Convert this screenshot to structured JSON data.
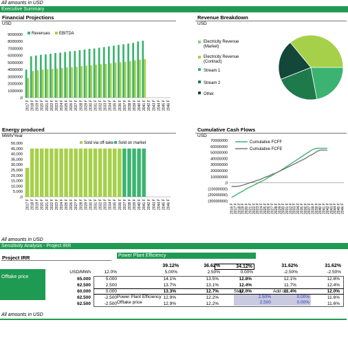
{
  "header": {
    "amounts_note": "All amounts in USD",
    "section": "Executive Summary"
  },
  "colors": {
    "green": "#1f9a52",
    "revenue": "#3cb371",
    "ebitda": "#a6d04a",
    "offtake": "#a6d04a",
    "market": "#3cb371"
  },
  "charts": {
    "projections": {
      "title": "Financial Projections",
      "unit": "USD"
    },
    "breakdown": {
      "title": "Revenue Breakdown",
      "unit": "USD"
    },
    "energy": {
      "title": "Energy produced",
      "unit": "MWh/Year"
    },
    "cashflow": {
      "title": "Cumulative Cash Flows",
      "unit": "USD"
    }
  },
  "chart_data": [
    {
      "type": "bar",
      "title": "Financial Projections",
      "ylabel": "USD",
      "categories": [
        "2017 F",
        "2018 F",
        "2019 F",
        "2020 F",
        "2021 F",
        "2022 F",
        "2023 F",
        "2024 F",
        "2025 F",
        "2026 F",
        "2027 F",
        "2028 F",
        "2029 F",
        "2030 F",
        "2031 F",
        "2032 F",
        "2033 F",
        "2034 F",
        "2035 F",
        "2036 F",
        "2037 F",
        "2038 F",
        "2039 F",
        "2040 F",
        "2041 F",
        "2042 F",
        "2043 F",
        "2044 F",
        "2045 F",
        "2046 F"
      ],
      "yticks": [
        "9000000",
        "8000000",
        "7000000",
        "6000000",
        "5000000",
        "4000000",
        "3000000",
        "2000000",
        "1000000",
        ",0"
      ],
      "ylim": [
        0,
        9000000
      ],
      "series": [
        {
          "name": "Revenues",
          "values": [
            4000000,
            5900000,
            6000000,
            6100000,
            6150000,
            6250000,
            6350000,
            6400000,
            6500000,
            6600000,
            6650000,
            6750000,
            6850000,
            6950000,
            7000000,
            7100000,
            7200000,
            7300000,
            7400000,
            7500000,
            7600000,
            7700000,
            7800000,
            8000000,
            8100000,
            0,
            0,
            0,
            0,
            0
          ]
        },
        {
          "name": "EBITDA",
          "values": [
            2800000,
            3800000,
            3900000,
            4000000,
            4050000,
            4100000,
            4150000,
            4200000,
            4300000,
            4350000,
            4400000,
            4500000,
            4550000,
            4600000,
            4700000,
            4750000,
            4800000,
            4900000,
            5000000,
            5050000,
            5100000,
            5200000,
            5300000,
            5400000,
            5500000,
            0,
            0,
            0,
            0,
            0
          ]
        }
      ],
      "legend": "top-left"
    },
    {
      "type": "pie",
      "title": "Revenue Breakdown",
      "labels": [
        "Electricity Revenue (Market)",
        "Electricity Revenue (Contract)",
        "Stream 1",
        "Stream 2",
        "Other"
      ],
      "values": [
        0,
        36,
        22,
        22,
        20
      ],
      "colors": [
        "#7fd37a",
        "#a6d04a",
        "#3cb371",
        "#1e7a4a",
        "#12473a"
      ],
      "legend": "left"
    },
    {
      "type": "bar",
      "title": "Energy produced",
      "ylabel": "MWh/Year",
      "categories": [
        "2017 F",
        "2018 F",
        "2019 F",
        "2020 F",
        "2021 F",
        "2022 F",
        "2023 F",
        "2024 F",
        "2025 F",
        "2026 F",
        "2027 F",
        "2028 F",
        "2029 F",
        "2030 F",
        "2031 F",
        "2032 F",
        "2033 F",
        "2034 F",
        "2035 F",
        "2036 F",
        "2037 F",
        "2038 F",
        "2039 F",
        "2040 F",
        "2041 F",
        "2042 F",
        "2043 F",
        "2044 F",
        "2045 F",
        "2046 F"
      ],
      "yticks": [
        "50,000",
        "45,000",
        "40,000",
        "35,000",
        "30,000",
        "25,000",
        "20,000",
        "15,000",
        "10,000",
        "5,000",
        ",0"
      ],
      "ylim": [
        0,
        50000
      ],
      "series": [
        {
          "name": "Sold via off-take",
          "values": [
            27000,
            45000,
            45000,
            45000,
            45000,
            45000,
            45000,
            45000,
            45000,
            45000,
            45000,
            45000,
            45000,
            45000,
            45000,
            45000,
            45000,
            45000,
            45000,
            45000,
            0,
            0,
            0,
            0,
            0,
            0,
            0,
            0,
            0,
            0
          ]
        },
        {
          "name": "Sold on market",
          "values": [
            0,
            0,
            0,
            0,
            0,
            0,
            0,
            0,
            0,
            0,
            0,
            0,
            0,
            0,
            0,
            0,
            0,
            0,
            0,
            0,
            45000,
            45000,
            45000,
            45000,
            45000,
            0,
            0,
            0,
            0,
            0
          ]
        }
      ],
      "legend": "top"
    },
    {
      "type": "line",
      "title": "Cumulative Cash Flows",
      "ylabel": "USD",
      "categories": [
        "2016 F",
        "2017 F",
        "2018 F",
        "2019 F",
        "2020 F",
        "2021 F",
        "2022 F",
        "2023 F",
        "2024 F",
        "2025 F",
        "2026 F",
        "2027 F",
        "2028 F",
        "2029 F",
        "2030 F",
        "2031 F",
        "2032 F",
        "2033 F",
        "2034 F",
        "2035 F",
        "2036 F",
        "2037 F",
        "2038 F",
        "2039 F",
        "2040 F",
        "2041 F",
        "2042 F",
        "2043 F",
        "2044 F",
        "2045 F",
        "2046 F"
      ],
      "yticks": [
        "70000000",
        "60000000",
        "50000000",
        "40000000",
        "30000000",
        "20000000",
        "10000000",
        ",0",
        "(10000000)",
        "(20000000)",
        "(30000000)"
      ],
      "ylim": [
        -30000000,
        70000000
      ],
      "series": [
        {
          "name": "Cumulative FCFF",
          "values": [
            -24000000,
            -21000000,
            -17000000,
            -14000000,
            -10000000,
            -7000000,
            -4000000,
            -1000000,
            2000000,
            5000000,
            9000000,
            12000000,
            16000000,
            19000000,
            23000000,
            27000000,
            31000000,
            35000000,
            39000000,
            43000000,
            47000000,
            51000000,
            55000000,
            57000000,
            57000000,
            57000000,
            57000000,
            null,
            null,
            null,
            null
          ]
        },
        {
          "name": "Cumulative FCFE",
          "values": [
            -6000000,
            -6000000,
            -5500000,
            -4000000,
            -2000000,
            0,
            2000000,
            4000000,
            6000000,
            9000000,
            11000000,
            14000000,
            16000000,
            19000000,
            22000000,
            25000000,
            28000000,
            31000000,
            34000000,
            37000000,
            40000000,
            44000000,
            47000000,
            51000000,
            54000000,
            54000000,
            54000000,
            null,
            null,
            null,
            null
          ]
        }
      ],
      "legend": "top-left"
    }
  ],
  "sensitivity": {
    "amounts_note": "All amounts in USD",
    "section": "Sensitivity Analysis - Project IRR",
    "label": "Project IRR",
    "axis_title": "Power Plant Efficiency",
    "row_axis": "Offtake price",
    "corner_value": "39.12%",
    "top_values": [
      "36.62%",
      "34.12%",
      "31.62%",
      "31.62%"
    ],
    "unit_label": "USD/MWh",
    "unit_value": "12.0%",
    "col_headers": [
      "5.00%",
      "2.50%",
      "0.00%",
      "-2.50%",
      "-2.50%"
    ],
    "rows": [
      {
        "price": "65.000",
        "delta": "5.000",
        "cells": [
          "14.1%",
          "13.5%",
          "12.8%",
          "12.1%",
          "12.8%"
        ]
      },
      {
        "price": "62.500",
        "delta": "2.500",
        "cells": [
          "13.7%",
          "13.1%",
          "12.4%",
          "11.7%",
          "12.4%"
        ]
      },
      {
        "price": "60.000",
        "delta": "0.000",
        "cells": [
          "13.3%",
          "12.7%",
          "12.0%",
          "11.4%",
          "12.0%"
        ]
      },
      {
        "price": "62.500",
        "delta": "-2.500",
        "cells": [
          "12.9%",
          "12.2%",
          "11.6%",
          "11.0%",
          "11.6%"
        ]
      },
      {
        "price": "62.500",
        "delta": "-2.500",
        "cells": [
          "12.9%",
          "12.2%",
          "11.6%",
          "11.0%",
          "11.6%"
        ]
      }
    ],
    "step_header": "Step",
    "addon_header": "Add on",
    "params": [
      {
        "label": "Power Plant Efficiency",
        "step": "2.50%",
        "addon": "0.00%"
      },
      {
        "label": "Offtake price",
        "step": "2.500",
        "addon": "0.00%"
      }
    ]
  },
  "footer_note": "All amounts in USD"
}
